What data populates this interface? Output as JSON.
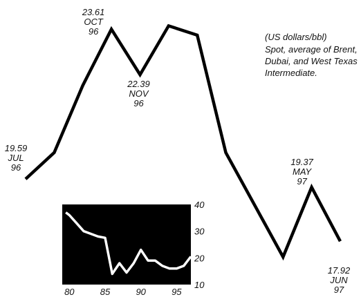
{
  "chart_data": [
    {
      "type": "line",
      "note_lines": [
        "(US dollars/bbl)",
        "Spot, average of Brent,",
        "Dubai, and West Texas",
        "Intermediate."
      ],
      "points": [
        {
          "y": 19.59,
          "label": [
            "19.59",
            "JUL",
            "96"
          ]
        },
        {
          "y": 20.3
        },
        {
          "y": 22.1
        },
        {
          "y": 23.61,
          "label": [
            "23.61",
            "OCT",
            "96"
          ]
        },
        {
          "y": 22.39,
          "label": [
            "22.39",
            "NOV",
            "96"
          ]
        },
        {
          "y": 23.7
        },
        {
          "y": 23.45
        },
        {
          "y": 20.3
        },
        {
          "y": 18.9
        },
        {
          "y": 17.5
        },
        {
          "y": 19.37,
          "label": [
            "19.37",
            "MAY",
            "97"
          ]
        },
        {
          "y": 17.92,
          "label": [
            "17.92",
            "JUN",
            "97"
          ]
        }
      ]
    },
    {
      "type": "line",
      "xticks": [
        "80",
        "85",
        "90",
        "95"
      ],
      "yticks": [
        "40",
        "30",
        "20",
        "10"
      ],
      "xlim": [
        79,
        97
      ],
      "ylim": [
        10,
        40
      ],
      "x": [
        79.5,
        80,
        81,
        82,
        83,
        84,
        85,
        86,
        87,
        88,
        89,
        90,
        91,
        92,
        93,
        94,
        95,
        96,
        97
      ],
      "y": [
        37,
        36,
        33,
        30,
        29,
        28,
        27.5,
        14,
        18,
        14.5,
        18,
        23,
        19,
        19,
        17,
        16,
        16,
        17,
        20.5
      ]
    }
  ]
}
